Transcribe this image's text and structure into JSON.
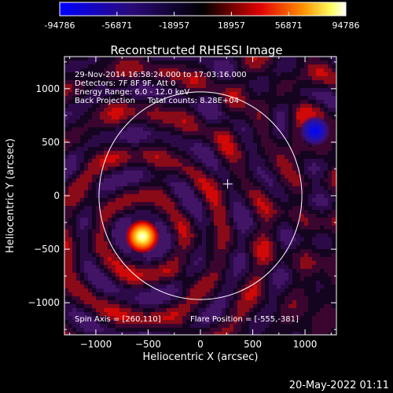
{
  "chart_data": {
    "type": "heatmap",
    "title": "Reconstructed RHESSI Image",
    "xlabel": "Heliocentric X (arcsec)",
    "ylabel": "Heliocentric Y (arcsec)",
    "xlim": [
      -1300,
      1300
    ],
    "ylim": [
      -1300,
      1300
    ],
    "x_ticks": [
      -1000,
      -500,
      0,
      500,
      1000
    ],
    "y_ticks": [
      -1000,
      -500,
      0,
      500,
      1000
    ],
    "colorbar": {
      "min": -94786,
      "max": 94786,
      "ticks": [
        "-94786",
        "-56871",
        "-18957",
        "18957",
        "56871",
        "94786"
      ]
    },
    "info_lines": [
      "29-Nov-2014 16:58:24.000 to 17:03:16.000",
      "Detectors: 7F 8F 9F, Att 0",
      "Energy Range: 6.0 - 12.0 keV",
      "Back Projection     Total counts: 8.28E+04"
    ],
    "footer_left": "Spin Axis = [260,110]",
    "footer_right": "Flare Position = [-555,-381]",
    "solar_limb_radius": 970,
    "spin_axis": [
      260,
      110
    ],
    "sources": [
      {
        "type": "positive",
        "x": -555,
        "y": -381,
        "strength": 1.0
      },
      {
        "type": "negative",
        "x": 1095,
        "y": 605,
        "strength": -0.85
      }
    ]
  },
  "timestamp": "20-May-2022 01:11"
}
